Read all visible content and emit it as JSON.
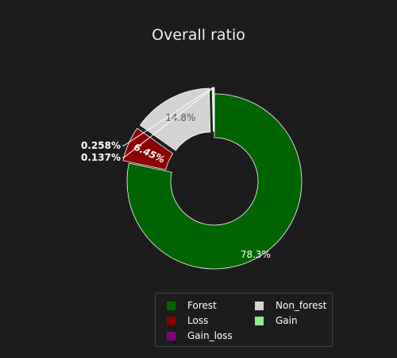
{
  "chart_data": {
    "type": "pie",
    "title": "Overall ratio",
    "hole": true,
    "slices": [
      {
        "name": "Forest",
        "percent": 78.3,
        "label": "78.3%",
        "color": "#006400",
        "pulled": false
      },
      {
        "name": "Loss",
        "percent": 6.45,
        "label": "6.45%",
        "color": "#8b0000",
        "pulled": true
      },
      {
        "name": "Non_forest",
        "percent": 14.8,
        "label": "14.8%",
        "color": "#d3d3d3",
        "pulled": true
      },
      {
        "name": "Gain",
        "percent": 0.258,
        "label": "0.258%",
        "color": "#90ee90",
        "pulled": true
      },
      {
        "name": "Gain_loss",
        "percent": 0.137,
        "label": "0.137%",
        "color": "#800080",
        "pulled": true
      }
    ],
    "legend": {
      "placement": "bottom-right",
      "items": [
        "Forest",
        "Non_forest",
        "Loss",
        "Gain",
        "Gain_loss"
      ]
    }
  },
  "colors": {
    "background": "#1c1c1c",
    "text": "#ffffff"
  }
}
